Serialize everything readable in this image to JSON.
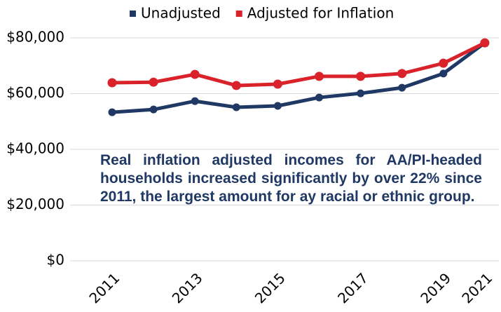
{
  "chart_data": {
    "type": "line",
    "categories": [
      "2011",
      null,
      "2013",
      null,
      "2015",
      null,
      "2017",
      null,
      "2019",
      "2021"
    ],
    "series": [
      {
        "name": "Unadjusted",
        "color": "#1f3864",
        "values": [
          53300,
          54300,
          57300,
          55100,
          55600,
          58600,
          60100,
          62100,
          67200,
          78200
        ]
      },
      {
        "name": "Adjusted for Inflation",
        "color": "#d9222a",
        "values": [
          63900,
          64100,
          66900,
          62900,
          63400,
          66200,
          66200,
          67200,
          70900,
          78200
        ]
      }
    ],
    "ylim": [
      0,
      80000
    ],
    "yticks": [
      {
        "value": 0,
        "label": "$0"
      },
      {
        "value": 20000,
        "label": "$20,000"
      },
      {
        "value": 40000,
        "label": "$40,000"
      },
      {
        "value": 60000,
        "label": "$60,000"
      },
      {
        "value": 80000,
        "label": "$80,000"
      }
    ],
    "grid": true,
    "legend": "top",
    "annotation": "Real inflation adjusted incomes for AA/PI-headed households increased significantly by over 22% since 2011, the largest amount for ay racial or ethnic group."
  }
}
